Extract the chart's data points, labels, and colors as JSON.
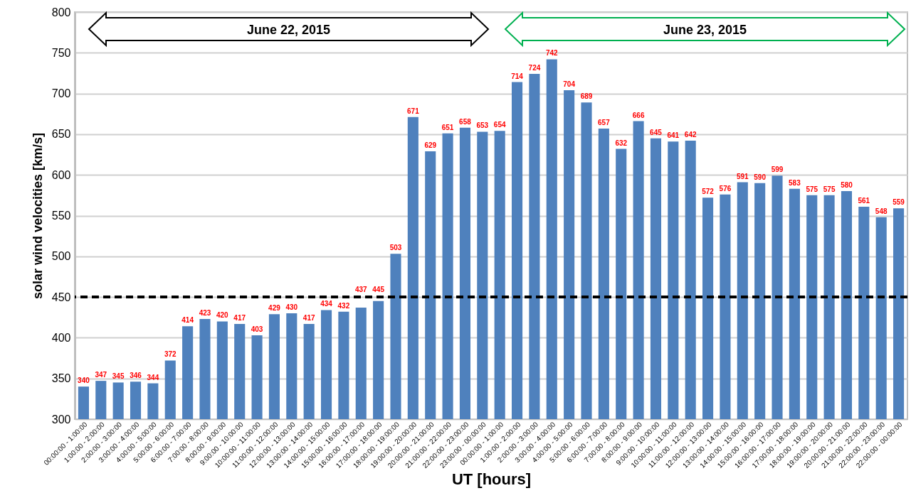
{
  "chart_data": {
    "type": "bar",
    "xlabel": "UT [hours]",
    "ylabel": "solar wind velocities [km/s]",
    "categories": [
      "00:00:00 - 1:00:00",
      "1:00:00 - 2:00:00",
      "2:00:00 - 3:00:00",
      "3:00:00 - 4:00:00",
      "4:00:00 - 5:00:00",
      "5:00:00 - 6:00:00",
      "6:00:00 - 7:00:00",
      "7:00:00 - 8:00:00",
      "8:00:00 - 9:00:00",
      "9:00:00 - 10:00:00",
      "10:00:00 - 11:00:00",
      "11:00:00 - 12:00:00",
      "12:00:00 - 13:00:00",
      "13:00:00 - 14:00:00",
      "14:00:00 - 15:00:00",
      "15:00:00 - 16:00:00",
      "16:00:00 - 17:00:00",
      "17:00:00 - 18:00:00",
      "18:00:00 - 19:00:00",
      "19:00:00 - 20:00:00",
      "20:00:00 - 21:00:00",
      "21:00:00 - 22:00:00",
      "22:00:00 - 23:00:00",
      "23:00:00 - 00:00:00",
      "00:00:00 - 1:00:00",
      "1:00:00 - 2:00:00",
      "2:00:00 - 3:00:00",
      "3:00:00 - 4:00:00",
      "4:00:00 - 5:00:00",
      "5:00:00 - 6:00:00",
      "6:00:00 - 7:00:00",
      "7:00:00 - 8:00:00",
      "8:00:00 - 9:00:00",
      "9:00:00 - 10:00:00",
      "10:00:00 - 11:00:00",
      "11:00:00 - 12:00:00",
      "12:00:00 - 13:00:00",
      "13:00:00 - 14:00:00",
      "14:00:00 - 15:00:00",
      "15:00:00 - 16:00:00",
      "16:00:00 - 17:00:00",
      "17:00:00 - 18:00:00",
      "18:00:00 - 19:00:00",
      "19:00:00 - 20:00:00",
      "20:00:00 - 21:00:00",
      "21:00:00 - 22:00:00",
      "22:00:00 - 23:00:00",
      "22:00:00 - 00:00:00"
    ],
    "values": [
      340,
      347,
      345,
      346,
      344,
      372,
      414,
      423,
      420,
      417,
      403,
      429,
      430,
      417,
      434,
      432,
      437,
      445,
      503,
      671,
      629,
      651,
      658,
      653,
      654,
      714,
      724,
      742,
      704,
      689,
      657,
      632,
      666,
      645,
      641,
      642,
      572,
      576,
      591,
      590,
      599,
      583,
      575,
      575,
      580,
      561,
      548,
      559
    ],
    "color": "#4f81bd",
    "ylim": [
      300,
      800
    ],
    "yticks": [
      300,
      350,
      400,
      450,
      500,
      550,
      600,
      650,
      700,
      750,
      800
    ],
    "grid": "y",
    "data_labels": true,
    "ref_lines": [
      {
        "axis": "y",
        "value": 450,
        "color": "#000000",
        "line_style": "dashed"
      }
    ],
    "annotations": [
      "June 22, 2015",
      "June 23, 2015"
    ]
  }
}
